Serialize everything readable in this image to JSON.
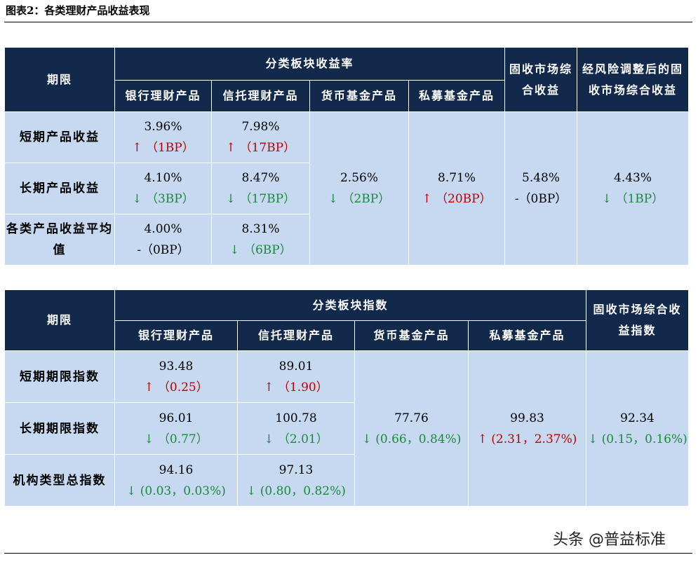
{
  "figure_title": "图表2：各类理财产品收益表现",
  "watermark": "头条 @普益标准",
  "table1": {
    "header": {
      "period": "期限",
      "group": "分类板块收益率",
      "bank": "银行理财产品",
      "trust": "信托理财产品",
      "money": "货币基金产品",
      "private": "私募基金产品",
      "fixed": "固收市场综合收益",
      "risk_adj": "经风险调整后的固收市场综合收益"
    },
    "rows": {
      "short": "短期产品收益",
      "long": "长期产品收益",
      "avg": "各类产品收益平均值"
    },
    "cells": {
      "short_bank": {
        "value": "3.96%",
        "change": "↑ （1BP）",
        "dir": "up"
      },
      "short_trust": {
        "value": "7.98%",
        "change": "↑ （17BP）",
        "dir": "up"
      },
      "long_bank": {
        "value": "4.10%",
        "change": "↓ （3BP）",
        "dir": "down"
      },
      "long_trust": {
        "value": "8.47%",
        "change": "↓ （17BP）",
        "dir": "down"
      },
      "avg_bank": {
        "value": "4.00%",
        "change": "-（0BP）",
        "dir": "flat"
      },
      "avg_trust": {
        "value": "8.31%",
        "change": "↓ （6BP）",
        "dir": "down"
      },
      "money": {
        "value": "2.56%",
        "change": "↓ （2BP）",
        "dir": "down"
      },
      "private": {
        "value": "8.71%",
        "change": "↑ （20BP）",
        "dir": "up"
      },
      "fixed": {
        "value": "5.48%",
        "change": "-（0BP）",
        "dir": "flat"
      },
      "risk_adj": {
        "value": "4.43%",
        "change": "↓ （1BP）",
        "dir": "down"
      }
    }
  },
  "table2": {
    "header": {
      "period": "期限",
      "group": "分类板块指数",
      "bank": "银行理财产品",
      "trust": "信托理财产品",
      "money": "货币基金产品",
      "private": "私募基金产品",
      "fixed": "固收市场综合收益指数"
    },
    "rows": {
      "short": "短期期限指数",
      "long": "长期期限指数",
      "total": "机构类型总指数"
    },
    "cells": {
      "short_bank": {
        "value": "93.48",
        "change": "↑ （0.25）",
        "dir": "up"
      },
      "short_trust": {
        "value": "89.01",
        "change": "↑ （1.90）",
        "dir": "up"
      },
      "long_bank": {
        "value": "96.01",
        "change": "↓ （0.77）",
        "dir": "down"
      },
      "long_trust": {
        "value": "100.78",
        "change": "↓ （2.01）",
        "dir": "down"
      },
      "total_bank": {
        "value": "94.16",
        "change": "↓ (0.03，0.03%)",
        "dir": "down"
      },
      "total_trust": {
        "value": "97.13",
        "change": "↓ (0.80，0.82%)",
        "dir": "down"
      },
      "money": {
        "value": "77.76",
        "change": "↓ (0.66，0.84%)",
        "dir": "down"
      },
      "private": {
        "value": "99.83",
        "change": "↑ (2.31，2.37%)",
        "dir": "up"
      },
      "fixed": {
        "value": "92.34",
        "change": "↓ (0.15，0.16%)",
        "dir": "down"
      }
    }
  },
  "colors": {
    "header_bg": "#13294b",
    "cell_bg": "#c6d9f1",
    "up": "#c00000",
    "down": "#1a8a3a"
  }
}
